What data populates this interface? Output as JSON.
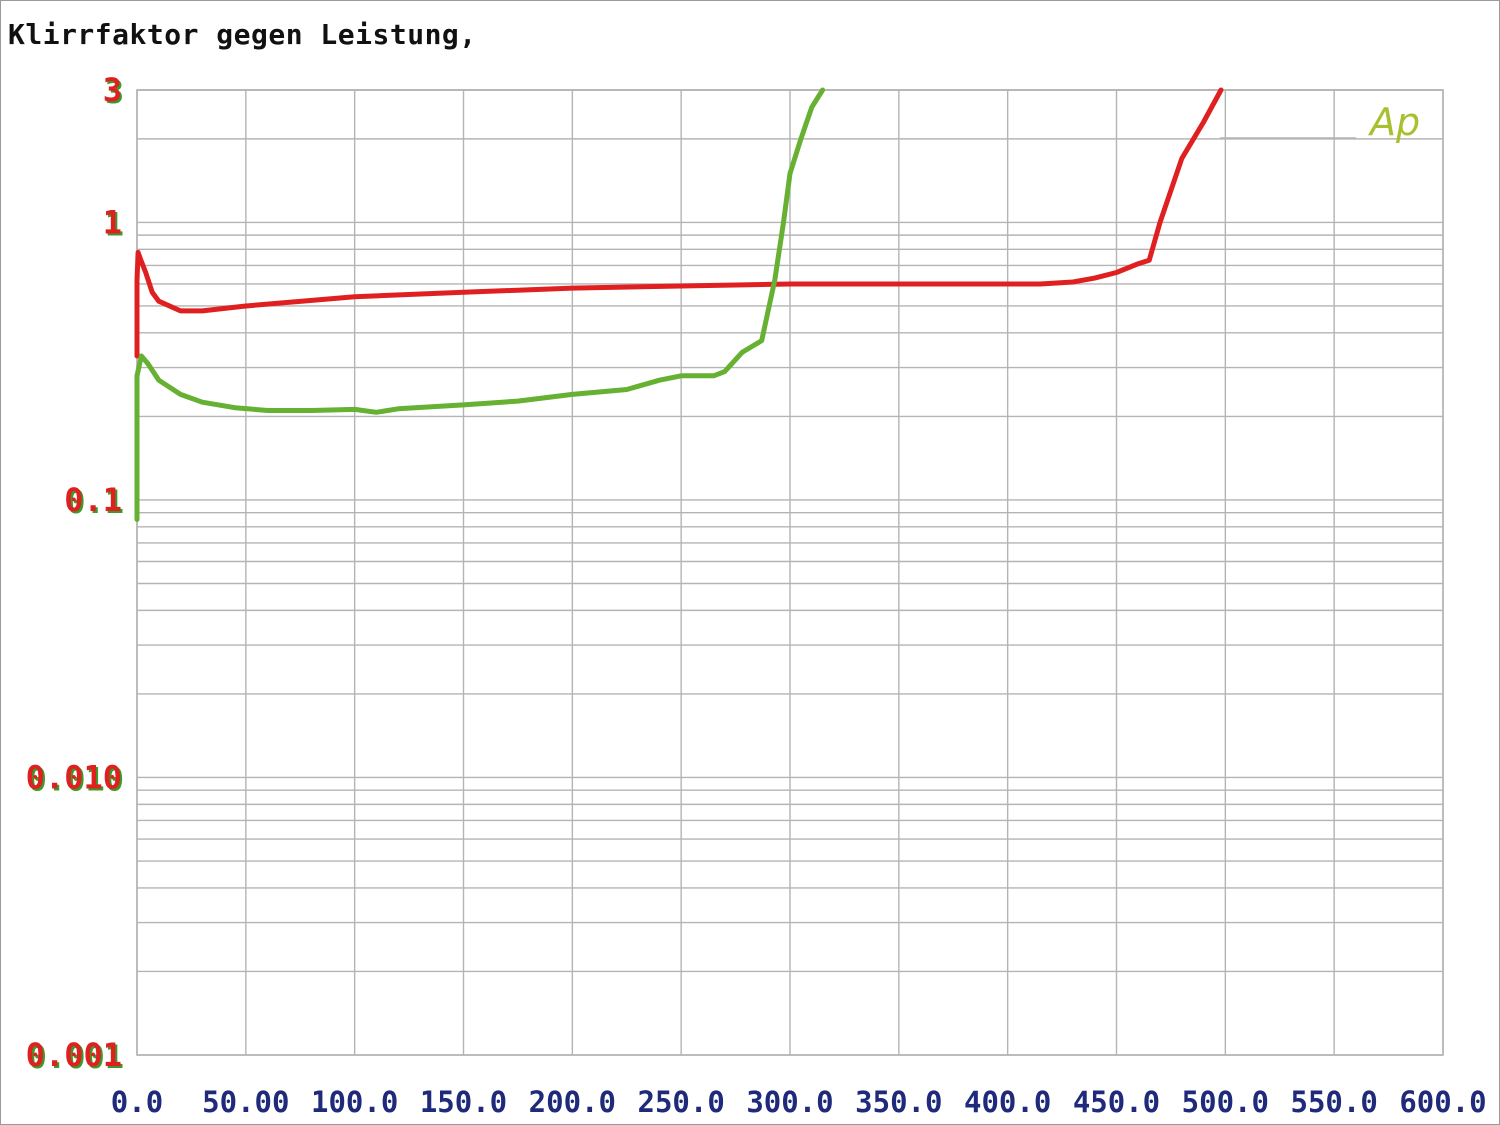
{
  "chart_data": {
    "type": "line",
    "title": "Klirrfaktor gegen Leistung,",
    "xlabel": "",
    "ylabel": "",
    "xlim": [
      0,
      600
    ],
    "ylim": [
      0.001,
      3
    ],
    "y_scale": "log",
    "grid": true,
    "x_tick_labels": [
      "0.0",
      "50.00",
      "100.0",
      "150.0",
      "200.0",
      "250.0",
      "300.0",
      "350.0",
      "400.0",
      "450.0",
      "500.0",
      "550.0",
      "600.0"
    ],
    "y_tick_labels": [
      {
        "value": 3,
        "label": "3"
      },
      {
        "value": 1,
        "label": "1"
      },
      {
        "value": 0.1,
        "label": "0.1"
      },
      {
        "value": 0.01,
        "label": "0.010"
      },
      {
        "value": 0.001,
        "label": "0.001"
      }
    ],
    "watermark": "Ap",
    "colors": {
      "red_series": "#e02020",
      "green_series": "#66b032",
      "y_tick": "#e02020",
      "y_tick_shadow": "#3a9a2a",
      "x_tick": "#1f2a7a",
      "grid": "#b4b4b4",
      "watermark": "#a8c030"
    },
    "series": [
      {
        "color": "#e02020",
        "points": [
          [
            0,
            0.33
          ],
          [
            0,
            0.62
          ],
          [
            0.5,
            0.78
          ],
          [
            1.5,
            0.74
          ],
          [
            4,
            0.66
          ],
          [
            7,
            0.56
          ],
          [
            10,
            0.52
          ],
          [
            20,
            0.48
          ],
          [
            30,
            0.48
          ],
          [
            50,
            0.5
          ],
          [
            100,
            0.54
          ],
          [
            150,
            0.56
          ],
          [
            200,
            0.58
          ],
          [
            250,
            0.59
          ],
          [
            300,
            0.6
          ],
          [
            350,
            0.6
          ],
          [
            400,
            0.6
          ],
          [
            415,
            0.6
          ],
          [
            430,
            0.61
          ],
          [
            440,
            0.63
          ],
          [
            450,
            0.66
          ],
          [
            460,
            0.71
          ],
          [
            465,
            0.73
          ],
          [
            470,
            1.0
          ],
          [
            480,
            1.7
          ],
          [
            490,
            2.3
          ],
          [
            498,
            3.0
          ]
        ]
      },
      {
        "color": "#66b032",
        "points": [
          [
            0,
            0.085
          ],
          [
            0,
            0.14
          ],
          [
            0,
            0.28
          ],
          [
            2,
            0.33
          ],
          [
            5,
            0.31
          ],
          [
            10,
            0.27
          ],
          [
            20,
            0.24
          ],
          [
            30,
            0.225
          ],
          [
            45,
            0.215
          ],
          [
            60,
            0.21
          ],
          [
            80,
            0.21
          ],
          [
            100,
            0.212
          ],
          [
            110,
            0.207
          ],
          [
            120,
            0.213
          ],
          [
            150,
            0.22
          ],
          [
            175,
            0.227
          ],
          [
            200,
            0.24
          ],
          [
            225,
            0.25
          ],
          [
            240,
            0.27
          ],
          [
            250,
            0.28
          ],
          [
            265,
            0.28
          ],
          [
            270,
            0.29
          ],
          [
            278,
            0.34
          ],
          [
            287,
            0.375
          ],
          [
            293,
            0.62
          ],
          [
            297,
            1.0
          ],
          [
            300,
            1.5
          ],
          [
            305,
            2.0
          ],
          [
            310,
            2.6
          ],
          [
            315,
            3.0
          ]
        ]
      }
    ]
  }
}
